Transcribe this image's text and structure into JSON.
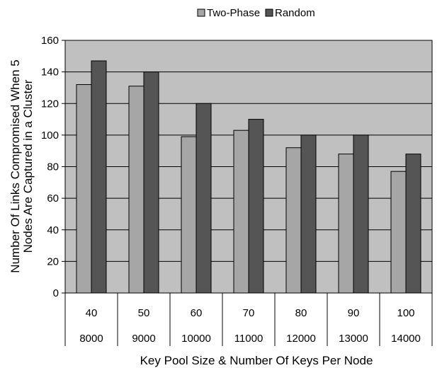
{
  "chart_data": {
    "type": "bar",
    "xlabel": "Key Pool Size & Number Of Keys Per Node",
    "ylabel": "Number Of Links Compromised When 5 Nodes Are Captured in a Cluster",
    "ylim": [
      0,
      160
    ],
    "yticks": [
      0,
      20,
      40,
      60,
      80,
      100,
      120,
      140,
      160
    ],
    "grid": true,
    "legend_position": "top-center",
    "categories_row1": [
      "40",
      "50",
      "60",
      "70",
      "80",
      "90",
      "100"
    ],
    "categories_row2": [
      "8000",
      "9000",
      "10000",
      "11000",
      "12000",
      "13000",
      "14000"
    ],
    "series": [
      {
        "name": "Two-Phase",
        "color": "#a6a6a6",
        "values": [
          132,
          131,
          99,
          103,
          92,
          88,
          77
        ]
      },
      {
        "name": "Random",
        "color": "#555555",
        "values": [
          147,
          140,
          120,
          110,
          100,
          100,
          88
        ]
      }
    ],
    "plot_background": "#c0c0c0"
  }
}
